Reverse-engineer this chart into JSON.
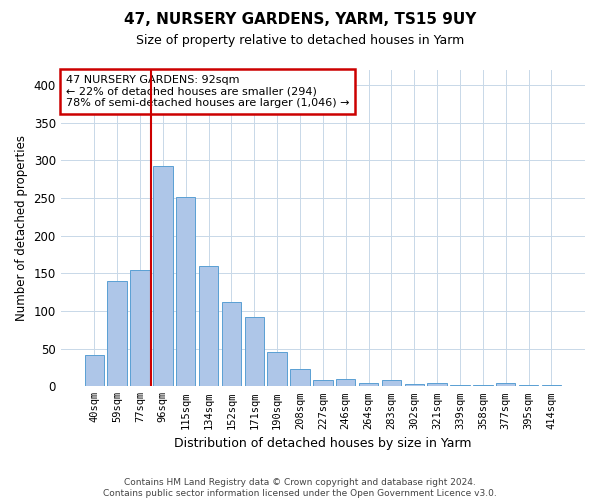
{
  "title": "47, NURSERY GARDENS, YARM, TS15 9UY",
  "subtitle": "Size of property relative to detached houses in Yarm",
  "xlabel": "Distribution of detached houses by size in Yarm",
  "ylabel": "Number of detached properties",
  "footer_line1": "Contains HM Land Registry data © Crown copyright and database right 2024.",
  "footer_line2": "Contains public sector information licensed under the Open Government Licence v3.0.",
  "bar_labels": [
    "40sqm",
    "59sqm",
    "77sqm",
    "96sqm",
    "115sqm",
    "134sqm",
    "152sqm",
    "171sqm",
    "190sqm",
    "208sqm",
    "227sqm",
    "246sqm",
    "264sqm",
    "283sqm",
    "302sqm",
    "321sqm",
    "339sqm",
    "358sqm",
    "377sqm",
    "395sqm",
    "414sqm"
  ],
  "bar_values": [
    42,
    140,
    155,
    293,
    251,
    160,
    112,
    92,
    46,
    23,
    8,
    10,
    5,
    8,
    3,
    4,
    2,
    2,
    4,
    2,
    2
  ],
  "bar_color": "#aec6e8",
  "bar_edge_color": "#5a9fd4",
  "grid_color": "#c8d8e8",
  "background_color": "#ffffff",
  "annotation_line1": "47 NURSERY GARDENS: 92sqm",
  "annotation_line2": "← 22% of detached houses are smaller (294)",
  "annotation_line3": "78% of semi-detached houses are larger (1,046) →",
  "annotation_box_color": "#ffffff",
  "annotation_box_edge": "#cc0000",
  "vline_color": "#cc0000",
  "vline_x": 2.5,
  "ylim": [
    0,
    420
  ],
  "yticks": [
    0,
    50,
    100,
    150,
    200,
    250,
    300,
    350,
    400
  ]
}
